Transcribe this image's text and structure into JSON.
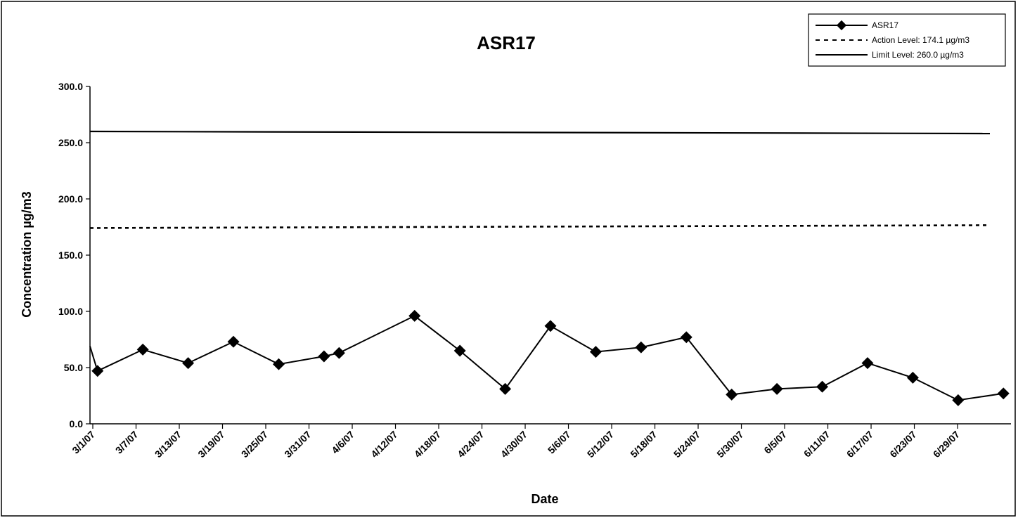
{
  "chart_data": {
    "type": "line",
    "title": "ASR17",
    "xlabel": "Date",
    "ylabel": "Concentration µg/m3",
    "ylim": [
      0,
      300
    ],
    "y_ticks": [
      "0.0",
      "50.0",
      "100.0",
      "150.0",
      "200.0",
      "250.0",
      "300.0"
    ],
    "x_ticks": [
      "3/1/07",
      "3/7/07",
      "3/13/07",
      "3/19/07",
      "3/25/07",
      "3/31/07",
      "4/6/07",
      "4/12/07",
      "4/18/07",
      "4/24/07",
      "4/30/07",
      "5/6/07",
      "5/12/07",
      "5/18/07",
      "5/24/07",
      "5/30/07",
      "6/5/07",
      "6/11/07",
      "6/17/07",
      "6/23/07",
      "6/29/07"
    ],
    "xlim": [
      "2007-03-01",
      "2007-07-01"
    ],
    "grid": false,
    "legend_position": "top-right",
    "series": [
      {
        "name": "ASR17",
        "style": "solid-with-diamond-markers",
        "color": "#000000",
        "points": [
          {
            "x": "2007-03-02",
            "y": 47
          },
          {
            "x": "2007-03-08",
            "y": 66
          },
          {
            "x": "2007-03-14",
            "y": 54
          },
          {
            "x": "2007-03-20",
            "y": 73
          },
          {
            "x": "2007-03-26",
            "y": 53
          },
          {
            "x": "2007-04-01",
            "y": 60
          },
          {
            "x": "2007-04-03",
            "y": 63
          },
          {
            "x": "2007-04-13",
            "y": 96
          },
          {
            "x": "2007-04-19",
            "y": 65
          },
          {
            "x": "2007-04-25",
            "y": 31
          },
          {
            "x": "2007-05-01",
            "y": 87
          },
          {
            "x": "2007-05-07",
            "y": 64
          },
          {
            "x": "2007-05-13",
            "y": 68
          },
          {
            "x": "2007-05-19",
            "y": 77
          },
          {
            "x": "2007-05-25",
            "y": 26
          },
          {
            "x": "2007-05-31",
            "y": 31
          },
          {
            "x": "2007-06-06",
            "y": 33
          },
          {
            "x": "2007-06-12",
            "y": 54
          },
          {
            "x": "2007-06-18",
            "y": 41
          },
          {
            "x": "2007-06-24",
            "y": 21
          },
          {
            "x": "2007-06-30",
            "y": 27
          }
        ]
      },
      {
        "name": "Action Level: 174.1 µg/m3",
        "style": "dashed",
        "color": "#000000",
        "constant": 174.1
      },
      {
        "name": "Limit Level: 260.0 µg/m3",
        "style": "solid",
        "color": "#000000",
        "constant": 260.0
      }
    ]
  }
}
